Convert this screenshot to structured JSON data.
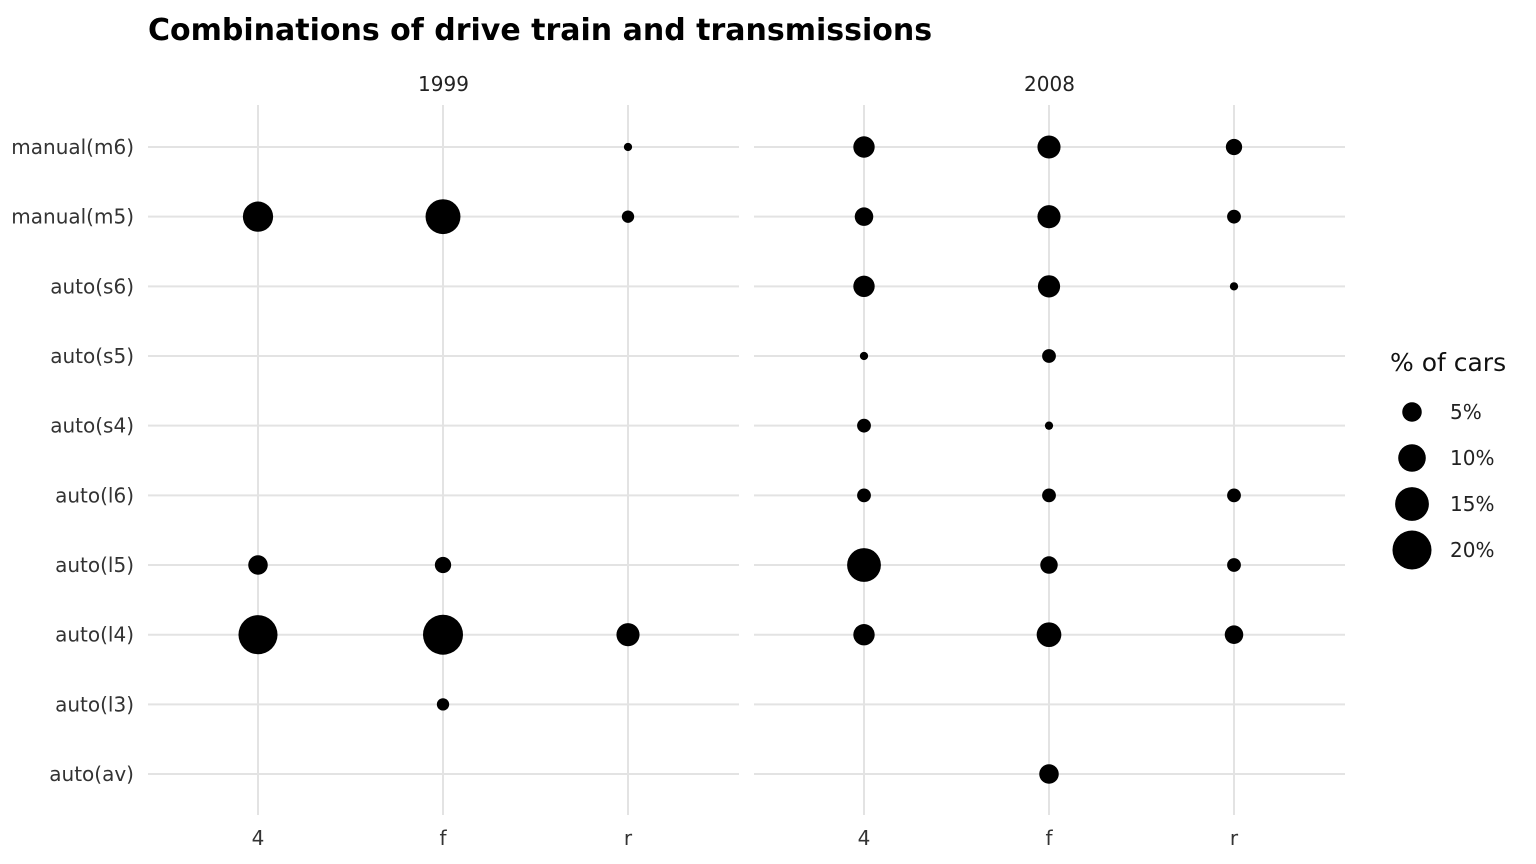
{
  "chart_data": {
    "type": "scatter",
    "title": "Combinations of drive train and transmissions",
    "xlabel": "",
    "ylabel": "",
    "grid": true,
    "legend_position": "right",
    "legend_title": "% of cars",
    "legend_entries": [
      {
        "label": "5%",
        "value": 5
      },
      {
        "label": "10%",
        "value": 10
      },
      {
        "label": "15%",
        "value": 15
      },
      {
        "label": "20%",
        "value": 20
      }
    ],
    "x_categories": [
      "4",
      "f",
      "r"
    ],
    "y_categories": [
      "auto(av)",
      "auto(l3)",
      "auto(l4)",
      "auto(l5)",
      "auto(l6)",
      "auto(s4)",
      "auto(s5)",
      "auto(s6)",
      "manual(m5)",
      "manual(m6)"
    ],
    "size_unit": "% of cars",
    "panels": [
      {
        "label": "1999",
        "points": [
          {
            "x": "r",
            "y": "manual(m6)",
            "size": 0.9
          },
          {
            "x": "4",
            "y": "manual(m5)",
            "size": 12.0
          },
          {
            "x": "f",
            "y": "manual(m5)",
            "size": 16.0
          },
          {
            "x": "r",
            "y": "manual(m5)",
            "size": 2.0
          },
          {
            "x": "4",
            "y": "auto(l5)",
            "size": 5.0
          },
          {
            "x": "f",
            "y": "auto(l5)",
            "size": 3.5
          },
          {
            "x": "4",
            "y": "auto(l4)",
            "size": 20.0
          },
          {
            "x": "f",
            "y": "auto(l4)",
            "size": 21.0
          },
          {
            "x": "r",
            "y": "auto(l4)",
            "size": 7.0
          },
          {
            "x": "f",
            "y": "auto(l3)",
            "size": 2.0
          }
        ]
      },
      {
        "label": "2008",
        "points": [
          {
            "x": "4",
            "y": "manual(m6)",
            "size": 6.0
          },
          {
            "x": "f",
            "y": "manual(m6)",
            "size": 7.0
          },
          {
            "x": "r",
            "y": "manual(m6)",
            "size": 3.5
          },
          {
            "x": "4",
            "y": "manual(m5)",
            "size": 4.5
          },
          {
            "x": "f",
            "y": "manual(m5)",
            "size": 7.0
          },
          {
            "x": "r",
            "y": "manual(m5)",
            "size": 2.5
          },
          {
            "x": "4",
            "y": "auto(s6)",
            "size": 6.0
          },
          {
            "x": "f",
            "y": "auto(s6)",
            "size": 6.5
          },
          {
            "x": "r",
            "y": "auto(s6)",
            "size": 0.9
          },
          {
            "x": "4",
            "y": "auto(s5)",
            "size": 0.9
          },
          {
            "x": "f",
            "y": "auto(s5)",
            "size": 2.5
          },
          {
            "x": "4",
            "y": "auto(s4)",
            "size": 2.5
          },
          {
            "x": "f",
            "y": "auto(s4)",
            "size": 0.9
          },
          {
            "x": "4",
            "y": "auto(l6)",
            "size": 2.5
          },
          {
            "x": "f",
            "y": "auto(l6)",
            "size": 2.5
          },
          {
            "x": "r",
            "y": "auto(l6)",
            "size": 2.5
          },
          {
            "x": "4",
            "y": "auto(l5)",
            "size": 15.0
          },
          {
            "x": "f",
            "y": "auto(l5)",
            "size": 4.0
          },
          {
            "x": "r",
            "y": "auto(l5)",
            "size": 2.5
          },
          {
            "x": "4",
            "y": "auto(l4)",
            "size": 6.0
          },
          {
            "x": "f",
            "y": "auto(l4)",
            "size": 8.0
          },
          {
            "x": "r",
            "y": "auto(l4)",
            "size": 4.5
          },
          {
            "x": "f",
            "y": "auto(av)",
            "size": 5.0
          }
        ]
      }
    ]
  }
}
